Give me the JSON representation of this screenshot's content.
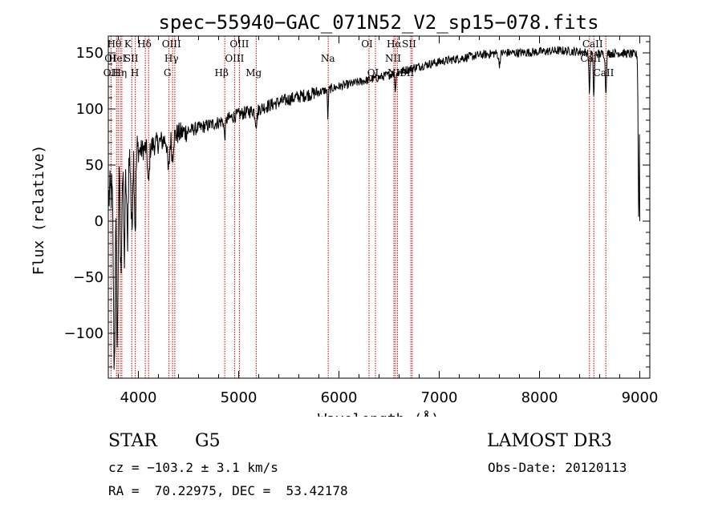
{
  "colors": {
    "spectrum": "#000000",
    "line_marker": "#cc0000",
    "background": "#ffffff",
    "axes": "#000000"
  },
  "info": {
    "object_class": "STAR",
    "subclass": "G5",
    "survey": "LAMOST DR3",
    "redshift": "cz = −103.2 ± 3.1 km/s",
    "obs_date": "Obs-Date: 20120113",
    "coordinates": "RA =  70.22975, DEC =  53.42178"
  },
  "chart_data": {
    "type": "line",
    "title": "spec−55940−GAC_071N52_V2_sp15−078.fits",
    "xlabel": "Wavelength (Å)",
    "ylabel": "Flux (relative)",
    "xlim": [
      3700,
      9100
    ],
    "ylim": [
      -140,
      165
    ],
    "xticks": [
      4000,
      5000,
      6000,
      7000,
      8000,
      9000
    ],
    "xtick_labels": [
      "4000",
      "5000",
      "6000",
      "7000",
      "8000",
      "9000"
    ],
    "yticks": [
      -100,
      -50,
      0,
      50,
      100,
      150
    ],
    "ytick_labels": [
      "−100",
      "−50",
      "0",
      "50",
      "100",
      "150"
    ],
    "continuum": [
      [
        3700,
        20
      ],
      [
        3800,
        40
      ],
      [
        3900,
        55
      ],
      [
        4000,
        62
      ],
      [
        4100,
        66
      ],
      [
        4200,
        70
      ],
      [
        4300,
        74
      ],
      [
        4400,
        78
      ],
      [
        4600,
        83
      ],
      [
        4800,
        88
      ],
      [
        5000,
        95
      ],
      [
        5200,
        100
      ],
      [
        5400,
        106
      ],
      [
        5600,
        111
      ],
      [
        5800,
        115
      ],
      [
        6000,
        120
      ],
      [
        6200,
        124
      ],
      [
        6400,
        128
      ],
      [
        6600,
        133
      ],
      [
        6800,
        138
      ],
      [
        7000,
        142
      ],
      [
        7200,
        145
      ],
      [
        7400,
        148
      ],
      [
        7600,
        150
      ],
      [
        7800,
        150
      ],
      [
        8000,
        151
      ],
      [
        8200,
        152
      ],
      [
        8400,
        151
      ],
      [
        8600,
        149
      ],
      [
        8800,
        150
      ],
      [
        9000,
        148
      ]
    ],
    "absorption_features": [
      {
        "x": 3760,
        "depth": 160,
        "width": 12
      },
      {
        "x": 3790,
        "depth": 150,
        "width": 10
      },
      {
        "x": 3825,
        "depth": 90,
        "width": 10
      },
      {
        "x": 3860,
        "depth": 80,
        "width": 10
      },
      {
        "x": 3890,
        "depth": 70,
        "width": 10
      },
      {
        "x": 3934,
        "depth": 70,
        "width": 9
      },
      {
        "x": 3969,
        "depth": 65,
        "width": 9
      },
      {
        "x": 4101,
        "depth": 35,
        "width": 12
      },
      {
        "x": 4300,
        "depth": 30,
        "width": 14
      },
      {
        "x": 4340,
        "depth": 20,
        "width": 10
      },
      {
        "x": 4861,
        "depth": 15,
        "width": 10
      },
      {
        "x": 5175,
        "depth": 12,
        "width": 14
      },
      {
        "x": 5890,
        "depth": 25,
        "width": 6
      },
      {
        "x": 6563,
        "depth": 18,
        "width": 6
      },
      {
        "x": 7600,
        "depth": 10,
        "width": 12
      },
      {
        "x": 8498,
        "depth": 35,
        "width": 8
      },
      {
        "x": 8542,
        "depth": 38,
        "width": 8
      },
      {
        "x": 8662,
        "depth": 36,
        "width": 8
      },
      {
        "x": 8990,
        "depth": 145,
        "width": 8
      }
    ],
    "noise": [
      {
        "from": 3700,
        "to": 4000,
        "amp": 22
      },
      {
        "from": 4000,
        "to": 4500,
        "amp": 10
      },
      {
        "from": 4500,
        "to": 5800,
        "amp": 6
      },
      {
        "from": 5800,
        "to": 7000,
        "amp": 4
      },
      {
        "from": 7000,
        "to": 9100,
        "amp": 4
      }
    ],
    "lines": [
      {
        "label": "OII",
        "x": 3727,
        "row": 2,
        "labelx": 3727
      },
      {
        "label": "Hθ",
        "x": 3798,
        "row": 0,
        "labelx": 3760
      },
      {
        "label": "Hη",
        "x": 3835,
        "row": 2,
        "labelx": 3815
      },
      {
        "label": "OI",
        "x": 3782,
        "row": 1,
        "labelx": 3720
      },
      {
        "label": "HeI",
        "x": 3820,
        "row": 1,
        "labelx": 3790
      },
      {
        "label": "K",
        "x": 3934,
        "row": 0,
        "labelx": 3895
      },
      {
        "label": "H",
        "x": 3969,
        "row": 2,
        "labelx": 3965
      },
      {
        "label": "SII",
        "x": 4069,
        "row": 1,
        "labelx": 3930
      },
      {
        "label": "Hδ",
        "x": 4102,
        "row": 0,
        "labelx": 4060
      },
      {
        "label": "OIII",
        "x": 4363,
        "row": 0,
        "labelx": 4330
      },
      {
        "label": "Hγ",
        "x": 4341,
        "row": 1,
        "labelx": 4330
      },
      {
        "label": "G",
        "x": 4305,
        "row": 2,
        "labelx": 4290
      },
      {
        "label": "Hβ",
        "x": 4861,
        "row": 2,
        "labelx": 4830
      },
      {
        "label": "OIII",
        "x": 4959,
        "row": 1,
        "labelx": 4959
      },
      {
        "label": "OIII",
        "x": 5007,
        "row": 0,
        "labelx": 5007
      },
      {
        "label": "Mg",
        "x": 5175,
        "row": 2,
        "labelx": 5150
      },
      {
        "label": "Na",
        "x": 5893,
        "row": 1,
        "labelx": 5890
      },
      {
        "label": "OI",
        "x": 6300,
        "row": 0,
        "labelx": 6280
      },
      {
        "label": "OI",
        "x": 6364,
        "row": 2,
        "labelx": 6340
      },
      {
        "label": "NII",
        "x": 6548,
        "row": 1,
        "labelx": 6540
      },
      {
        "label": "Hα",
        "x": 6563,
        "row": 0,
        "labelx": 6550
      },
      {
        "label": "NII",
        "x": 6583,
        "row": 2,
        "labelx": 6565
      },
      {
        "label": "SII",
        "x": 6717,
        "row": 0,
        "labelx": 6700
      },
      {
        "label": "SII",
        "x": 6731,
        "row": 2,
        "labelx": 6680
      },
      {
        "label": "CaII",
        "x": 8498,
        "row": 1,
        "labelx": 8510
      },
      {
        "label": "CaII",
        "x": 8542,
        "row": 0,
        "labelx": 8530
      },
      {
        "label": "CaII",
        "x": 8662,
        "row": 2,
        "labelx": 8640
      }
    ]
  }
}
